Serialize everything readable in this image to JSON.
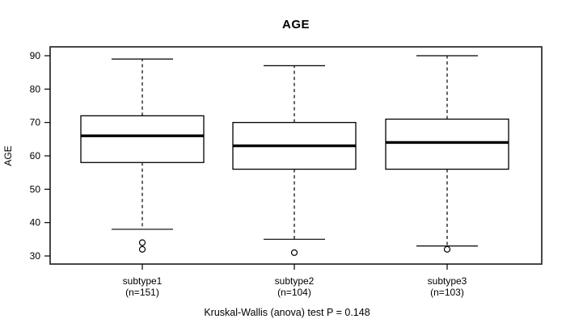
{
  "chart_data": {
    "type": "boxplot",
    "title": "AGE",
    "ylabel": "AGE",
    "xlabel": "",
    "ylim": [
      30,
      90
    ],
    "yticks": [
      30,
      40,
      50,
      60,
      70,
      80,
      90
    ],
    "annotation": "Kruskal-Wallis (anova) test P = 0.148",
    "grid": false,
    "legend": "none",
    "groups": [
      {
        "label": "subtype1",
        "sublabel": "(n=151)",
        "n": 151,
        "whisker_low": 38,
        "q1": 58,
        "median": 66,
        "q3": 72,
        "whisker_high": 89,
        "outliers": [
          34,
          32
        ]
      },
      {
        "label": "subtype2",
        "sublabel": "(n=104)",
        "n": 104,
        "whisker_low": 35,
        "q1": 56,
        "median": 63,
        "q3": 70,
        "whisker_high": 87,
        "outliers": [
          31
        ]
      },
      {
        "label": "subtype3",
        "sublabel": "(n=103)",
        "n": 103,
        "whisker_low": 33,
        "q1": 56,
        "median": 64,
        "q3": 71,
        "whisker_high": 90,
        "outliers": [
          32
        ]
      }
    ],
    "colors": {
      "line": "#000000",
      "border": "#333333",
      "box_fill": "#ffffff",
      "background": "#ffffff",
      "text": "#000000"
    }
  }
}
